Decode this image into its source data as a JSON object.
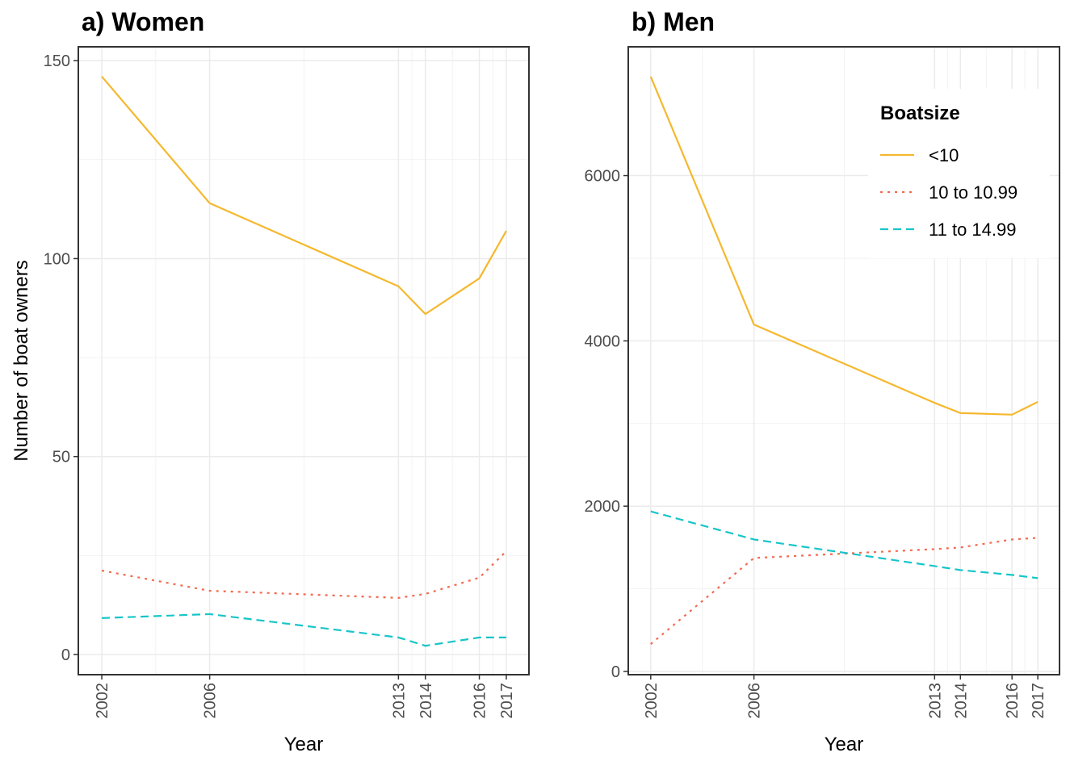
{
  "chart_data": [
    {
      "type": "line",
      "title": "a) Women",
      "x_label": "Year",
      "y_label": "Number of boat owners",
      "x": [
        2002,
        2006,
        2013,
        2014,
        2016,
        2017
      ],
      "xlim": [
        2001.13,
        2017.84
      ],
      "xticks": [
        2002,
        2006,
        2013,
        2014,
        2016,
        2017
      ],
      "ylim": [
        -5.1,
        153.5
      ],
      "yticks": [
        0,
        50,
        100,
        150
      ],
      "grid": true,
      "series": [
        {
          "name": "<10",
          "color": "#f5b82e",
          "dash": "solid",
          "values": [
            146,
            114,
            93,
            86,
            95,
            107
          ]
        },
        {
          "name": "10 to 10.99",
          "color": "#f4694f",
          "dash": "dotted",
          "values": [
            21.2,
            16.1,
            14.3,
            15.3,
            19.4,
            26.1
          ]
        },
        {
          "name": "11 to 14.99",
          "color": "#17c5c9",
          "dash": "dashed",
          "values": [
            9.2,
            10.2,
            4.3,
            2.2,
            4.3,
            4.3
          ]
        }
      ]
    },
    {
      "type": "line",
      "title": "b) Men",
      "x_label": "Year",
      "x": [
        2002,
        2006,
        2013,
        2014,
        2016,
        2017
      ],
      "xlim": [
        2001.13,
        2017.84
      ],
      "xticks": [
        2002,
        2006,
        2013,
        2014,
        2016,
        2017
      ],
      "ylim": [
        -39,
        7558
      ],
      "yticks": [
        0,
        2000,
        4000,
        6000
      ],
      "grid": true,
      "legend_title": "Boatsize",
      "legend": "top-right",
      "series": [
        {
          "name": "<10",
          "color": "#f5b82e",
          "dash": "solid",
          "values": [
            7197,
            4197,
            3250,
            3127,
            3107,
            3262
          ]
        },
        {
          "name": "10 to 10.99",
          "color": "#f4694f",
          "dash": "dotted",
          "values": [
            331,
            1373,
            1480,
            1500,
            1597,
            1617
          ]
        },
        {
          "name": "11 to 14.99",
          "color": "#17c5c9",
          "dash": "dashed",
          "values": [
            1937,
            1597,
            1275,
            1227,
            1168,
            1129
          ]
        }
      ]
    }
  ]
}
